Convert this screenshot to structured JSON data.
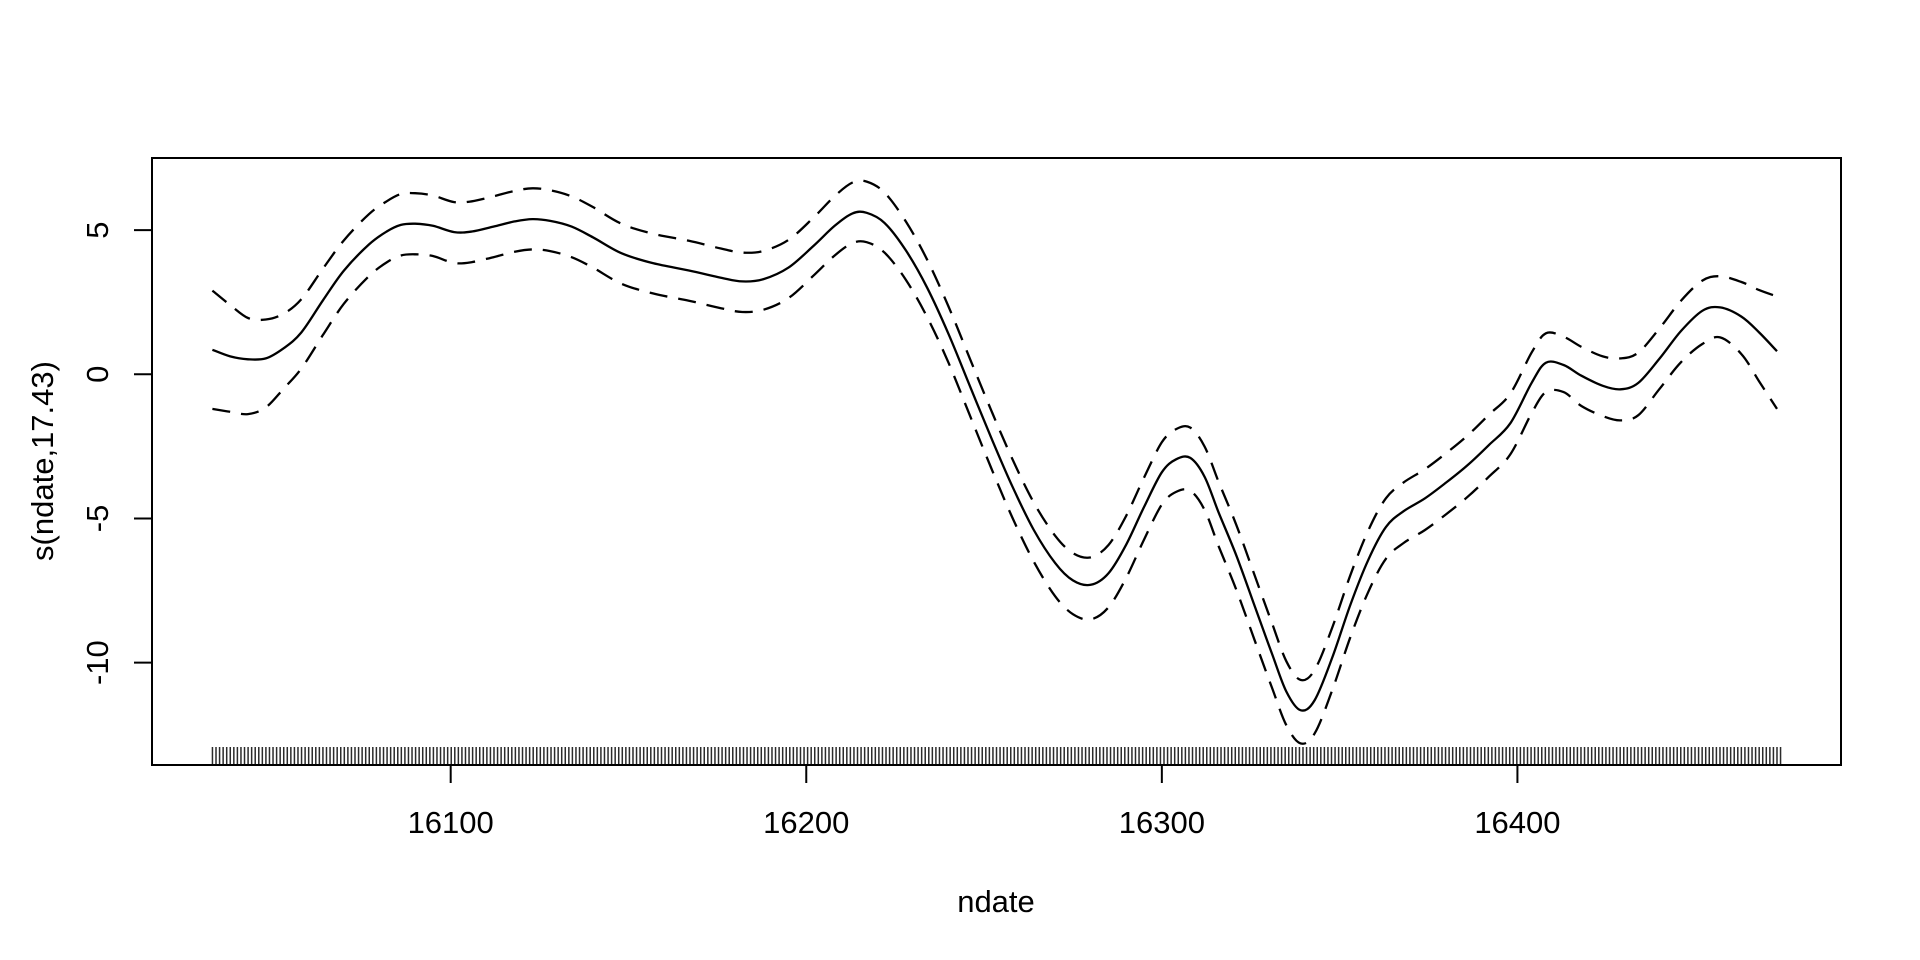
{
  "figure": {
    "background": "#ffffff",
    "foreground": "#000000",
    "rug_color": "#2b2b2b"
  },
  "chart_data": {
    "type": "line",
    "title": "",
    "xlabel": "ndate",
    "ylabel": "s(ndate,17.43)",
    "x_ticks": [
      16100,
      16200,
      16300,
      16400
    ],
    "y_ticks": [
      5,
      0,
      -5,
      -10
    ],
    "xlim": [
      16016,
      16491
    ],
    "ylim": [
      -13.55,
      7.5
    ],
    "grid": false,
    "legend": null,
    "x": [
      16033,
      16038,
      16043,
      16048,
      16053,
      16058,
      16064,
      16070,
      16077,
      16082,
      16086,
      16090,
      16095,
      16101,
      16106,
      16112,
      16118,
      16123,
      16128,
      16134,
      16140,
      16148,
      16157,
      16167,
      16176,
      16182,
      16188,
      16195,
      16202,
      16208,
      16213,
      16217,
      16222,
      16228,
      16234,
      16240,
      16246,
      16252,
      16258,
      16264,
      16270,
      16275,
      16280,
      16285,
      16290,
      16295,
      16300,
      16304,
      16308,
      16312,
      16316,
      16321,
      16326,
      16331,
      16335,
      16339,
      16343,
      16348,
      16353,
      16358,
      16363,
      16368,
      16374,
      16380,
      16386,
      16392,
      16398,
      16404,
      16408,
      16413,
      16418,
      16424,
      16429,
      16434,
      16440,
      16446,
      16452,
      16457,
      16463,
      16468,
      16473
    ],
    "series": [
      {
        "name": "smooth-fit",
        "style": "solid",
        "values": [
          0.85,
          0.62,
          0.52,
          0.55,
          0.9,
          1.45,
          2.55,
          3.6,
          4.5,
          4.95,
          5.18,
          5.22,
          5.15,
          4.93,
          4.95,
          5.12,
          5.3,
          5.38,
          5.32,
          5.12,
          4.75,
          4.2,
          3.85,
          3.6,
          3.35,
          3.22,
          3.3,
          3.7,
          4.45,
          5.15,
          5.58,
          5.6,
          5.25,
          4.3,
          3.0,
          1.4,
          -0.4,
          -2.2,
          -3.9,
          -5.4,
          -6.55,
          -7.15,
          -7.3,
          -6.9,
          -5.9,
          -4.6,
          -3.4,
          -2.95,
          -2.9,
          -3.55,
          -4.8,
          -6.3,
          -8.0,
          -9.7,
          -11.0,
          -11.65,
          -11.3,
          -9.8,
          -8.0,
          -6.45,
          -5.3,
          -4.75,
          -4.3,
          -3.75,
          -3.15,
          -2.45,
          -1.7,
          -0.3,
          0.4,
          0.32,
          -0.05,
          -0.4,
          -0.52,
          -0.3,
          0.55,
          1.5,
          2.2,
          2.32,
          2.0,
          1.45,
          0.8
        ]
      },
      {
        "name": "upper-ci",
        "style": "dashed",
        "values": [
          2.9,
          2.4,
          1.95,
          1.9,
          2.1,
          2.6,
          3.65,
          4.65,
          5.55,
          6.0,
          6.25,
          6.28,
          6.2,
          5.97,
          6.0,
          6.17,
          6.36,
          6.45,
          6.38,
          6.17,
          5.8,
          5.22,
          4.87,
          4.63,
          4.36,
          4.22,
          4.28,
          4.66,
          5.43,
          6.18,
          6.65,
          6.68,
          6.3,
          5.3,
          3.97,
          2.35,
          0.55,
          -1.25,
          -2.95,
          -4.45,
          -5.6,
          -6.2,
          -6.35,
          -5.92,
          -4.9,
          -3.58,
          -2.36,
          -1.9,
          -1.85,
          -2.5,
          -3.74,
          -5.24,
          -6.94,
          -8.64,
          -9.95,
          -10.6,
          -10.25,
          -8.76,
          -6.97,
          -5.43,
          -4.3,
          -3.75,
          -3.29,
          -2.73,
          -2.12,
          -1.4,
          -0.67,
          0.75,
          1.42,
          1.3,
          0.95,
          0.62,
          0.55,
          0.75,
          1.6,
          2.55,
          3.25,
          3.4,
          3.2,
          2.92,
          2.7
        ]
      },
      {
        "name": "lower-ci",
        "style": "dashed",
        "values": [
          -1.2,
          -1.3,
          -1.38,
          -1.15,
          -0.5,
          0.2,
          1.35,
          2.45,
          3.4,
          3.88,
          4.12,
          4.16,
          4.1,
          3.86,
          3.89,
          4.06,
          4.25,
          4.33,
          4.27,
          4.06,
          3.7,
          3.14,
          2.8,
          2.55,
          2.29,
          2.16,
          2.24,
          2.64,
          3.42,
          4.12,
          4.55,
          4.58,
          4.22,
          3.28,
          1.98,
          0.4,
          -1.42,
          -3.25,
          -4.98,
          -6.5,
          -7.7,
          -8.32,
          -8.5,
          -8.08,
          -7.05,
          -5.73,
          -4.52,
          -4.08,
          -4.04,
          -4.7,
          -5.97,
          -7.49,
          -9.19,
          -10.88,
          -12.17,
          -12.8,
          -12.45,
          -10.93,
          -9.12,
          -7.56,
          -6.4,
          -5.85,
          -5.4,
          -4.85,
          -4.25,
          -3.55,
          -2.78,
          -1.35,
          -0.62,
          -0.62,
          -1.1,
          -1.45,
          -1.6,
          -1.42,
          -0.5,
          0.42,
          1.05,
          1.28,
          0.7,
          -0.25,
          -1.2
        ]
      }
    ],
    "rug": {
      "x_start": 16033,
      "x_end": 16474,
      "count": 441
    }
  }
}
